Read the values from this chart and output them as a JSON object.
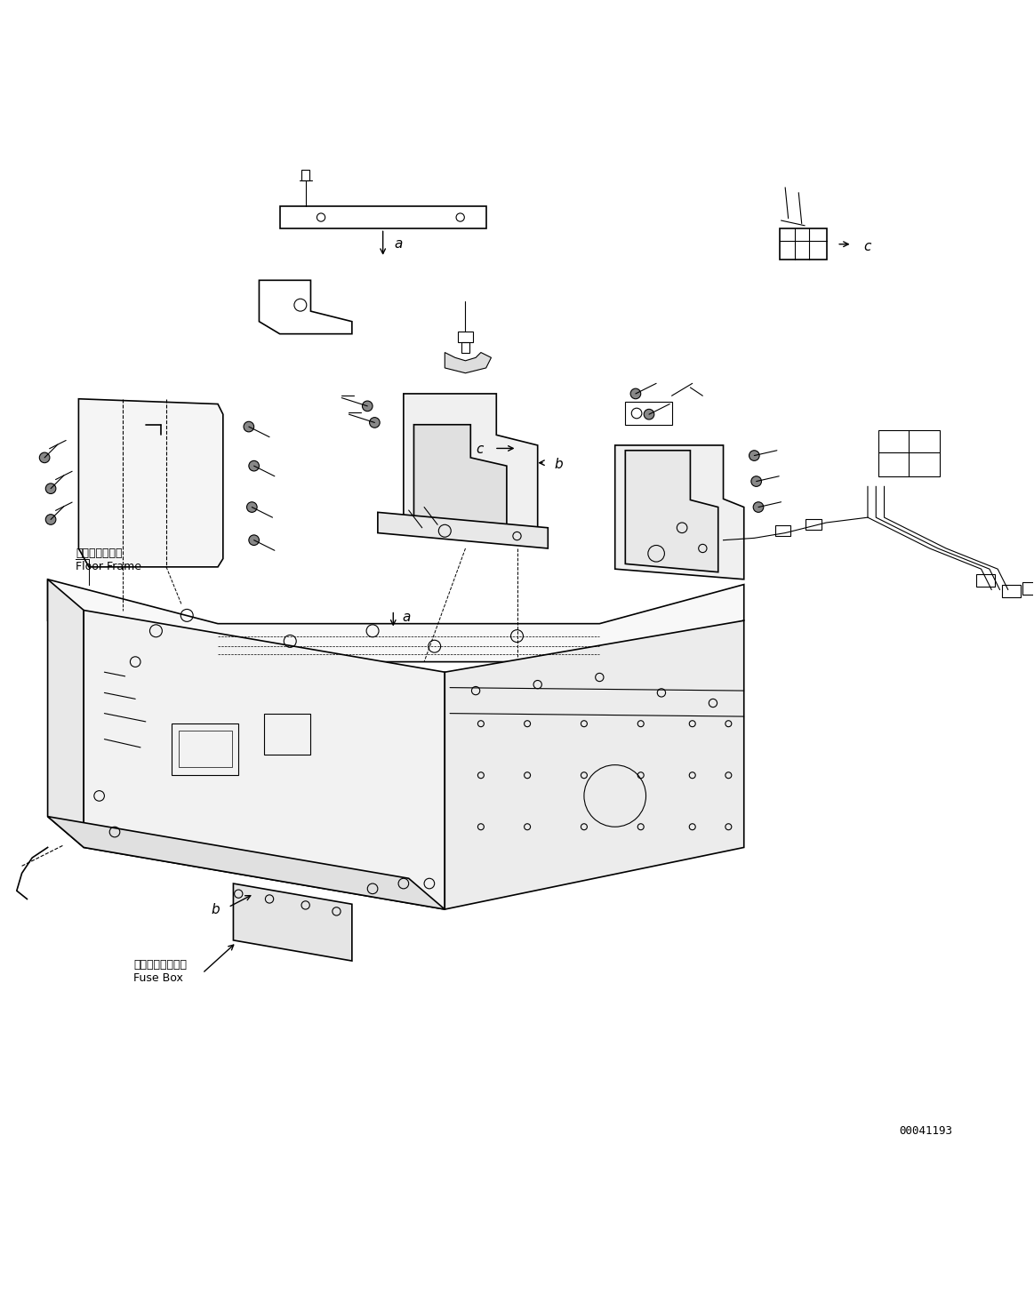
{
  "figure_width": 11.63,
  "figure_height": 14.66,
  "dpi": 100,
  "bg_color": "#ffffff",
  "line_color": "#000000",
  "part_number": "00041193",
  "labels": {
    "floor_frame_jp": "フロアフレーム",
    "floor_frame_en": "Floor Frame",
    "fuse_box_jp": "フューズボックス",
    "fuse_box_en": "Fuse Box"
  }
}
